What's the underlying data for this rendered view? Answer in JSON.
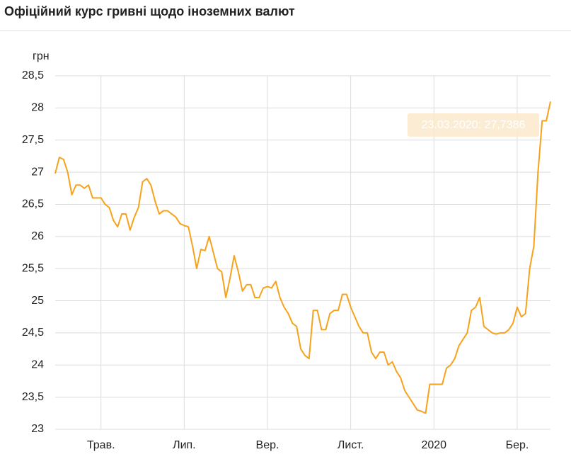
{
  "header": {
    "title": "Офіційний курс гривні щодо іноземних валют"
  },
  "chart_data": {
    "type": "line",
    "y_label": "грн",
    "categories": [
      null,
      null,
      null,
      null,
      null,
      null,
      null,
      null,
      null,
      null,
      null,
      "Трав.",
      null,
      null,
      null,
      null,
      null,
      null,
      null,
      null,
      null,
      null,
      null,
      null,
      null,
      null,
      null,
      null,
      null,
      null,
      null,
      "Лип.",
      null,
      null,
      null,
      null,
      null,
      null,
      null,
      null,
      null,
      null,
      null,
      null,
      null,
      null,
      null,
      null,
      null,
      null,
      null,
      "Вер.",
      null,
      null,
      null,
      null,
      null,
      null,
      null,
      null,
      null,
      null,
      null,
      null,
      null,
      null,
      null,
      null,
      null,
      null,
      null,
      "Лист.",
      null,
      null,
      null,
      null,
      null,
      null,
      null,
      null,
      null,
      null,
      null,
      null,
      null,
      null,
      null,
      null,
      null,
      null,
      null,
      "2020",
      null,
      null,
      null,
      null,
      null,
      null,
      null,
      null,
      null,
      null,
      null,
      null,
      null,
      null,
      null,
      null,
      null,
      null,
      null,
      "Бер.",
      null,
      null,
      null,
      null,
      null,
      null,
      null,
      null
    ],
    "series": [
      {
        "name": "грн",
        "color": "#f7a21b",
        "values": [
          26.98,
          27.23,
          27.2,
          27.0,
          26.65,
          26.8,
          26.8,
          26.75,
          26.8,
          26.6,
          26.6,
          26.6,
          26.5,
          26.45,
          26.25,
          26.15,
          26.35,
          26.35,
          26.1,
          26.3,
          26.45,
          26.85,
          26.9,
          26.8,
          26.55,
          26.35,
          26.4,
          26.4,
          26.35,
          26.3,
          26.2,
          26.17,
          26.15,
          25.85,
          25.5,
          25.8,
          25.78,
          26.0,
          25.75,
          25.5,
          25.45,
          25.05,
          25.35,
          25.7,
          25.45,
          25.15,
          25.25,
          25.25,
          25.05,
          25.05,
          25.2,
          25.22,
          25.2,
          25.3,
          25.05,
          24.9,
          24.8,
          24.65,
          24.6,
          24.25,
          24.15,
          24.1,
          24.85,
          24.85,
          24.55,
          24.55,
          24.8,
          24.85,
          24.85,
          25.1,
          25.1,
          24.9,
          24.75,
          24.6,
          24.5,
          24.5,
          24.2,
          24.1,
          24.2,
          24.2,
          24.0,
          24.05,
          23.9,
          23.8,
          23.6,
          23.5,
          23.4,
          23.3,
          23.28,
          23.25,
          23.7,
          23.7,
          23.7,
          23.7,
          23.95,
          24.0,
          24.1,
          24.3,
          24.4,
          24.5,
          24.85,
          24.9,
          25.05,
          24.6,
          24.55,
          24.5,
          24.48,
          24.5,
          24.5,
          24.55,
          24.65,
          24.9,
          24.75,
          24.8,
          25.5,
          25.85,
          27.0,
          27.8,
          27.8,
          28.1
        ]
      }
    ],
    "ylim": [
      23,
      28.5
    ],
    "yticks": [
      23,
      {
        "value": 23.5,
        "label": "23,5"
      },
      24,
      {
        "value": 24.5,
        "label": "24,5"
      },
      25,
      {
        "value": 25.5,
        "label": "25,5"
      },
      26,
      {
        "value": 26.5,
        "label": "26,5"
      },
      27,
      {
        "value": 27.5,
        "label": "27,5"
      },
      28,
      {
        "value": 28.5,
        "label": "28,5"
      }
    ],
    "grid": true,
    "tooltip": {
      "label": "23.03.2020: 27,7386"
    }
  }
}
